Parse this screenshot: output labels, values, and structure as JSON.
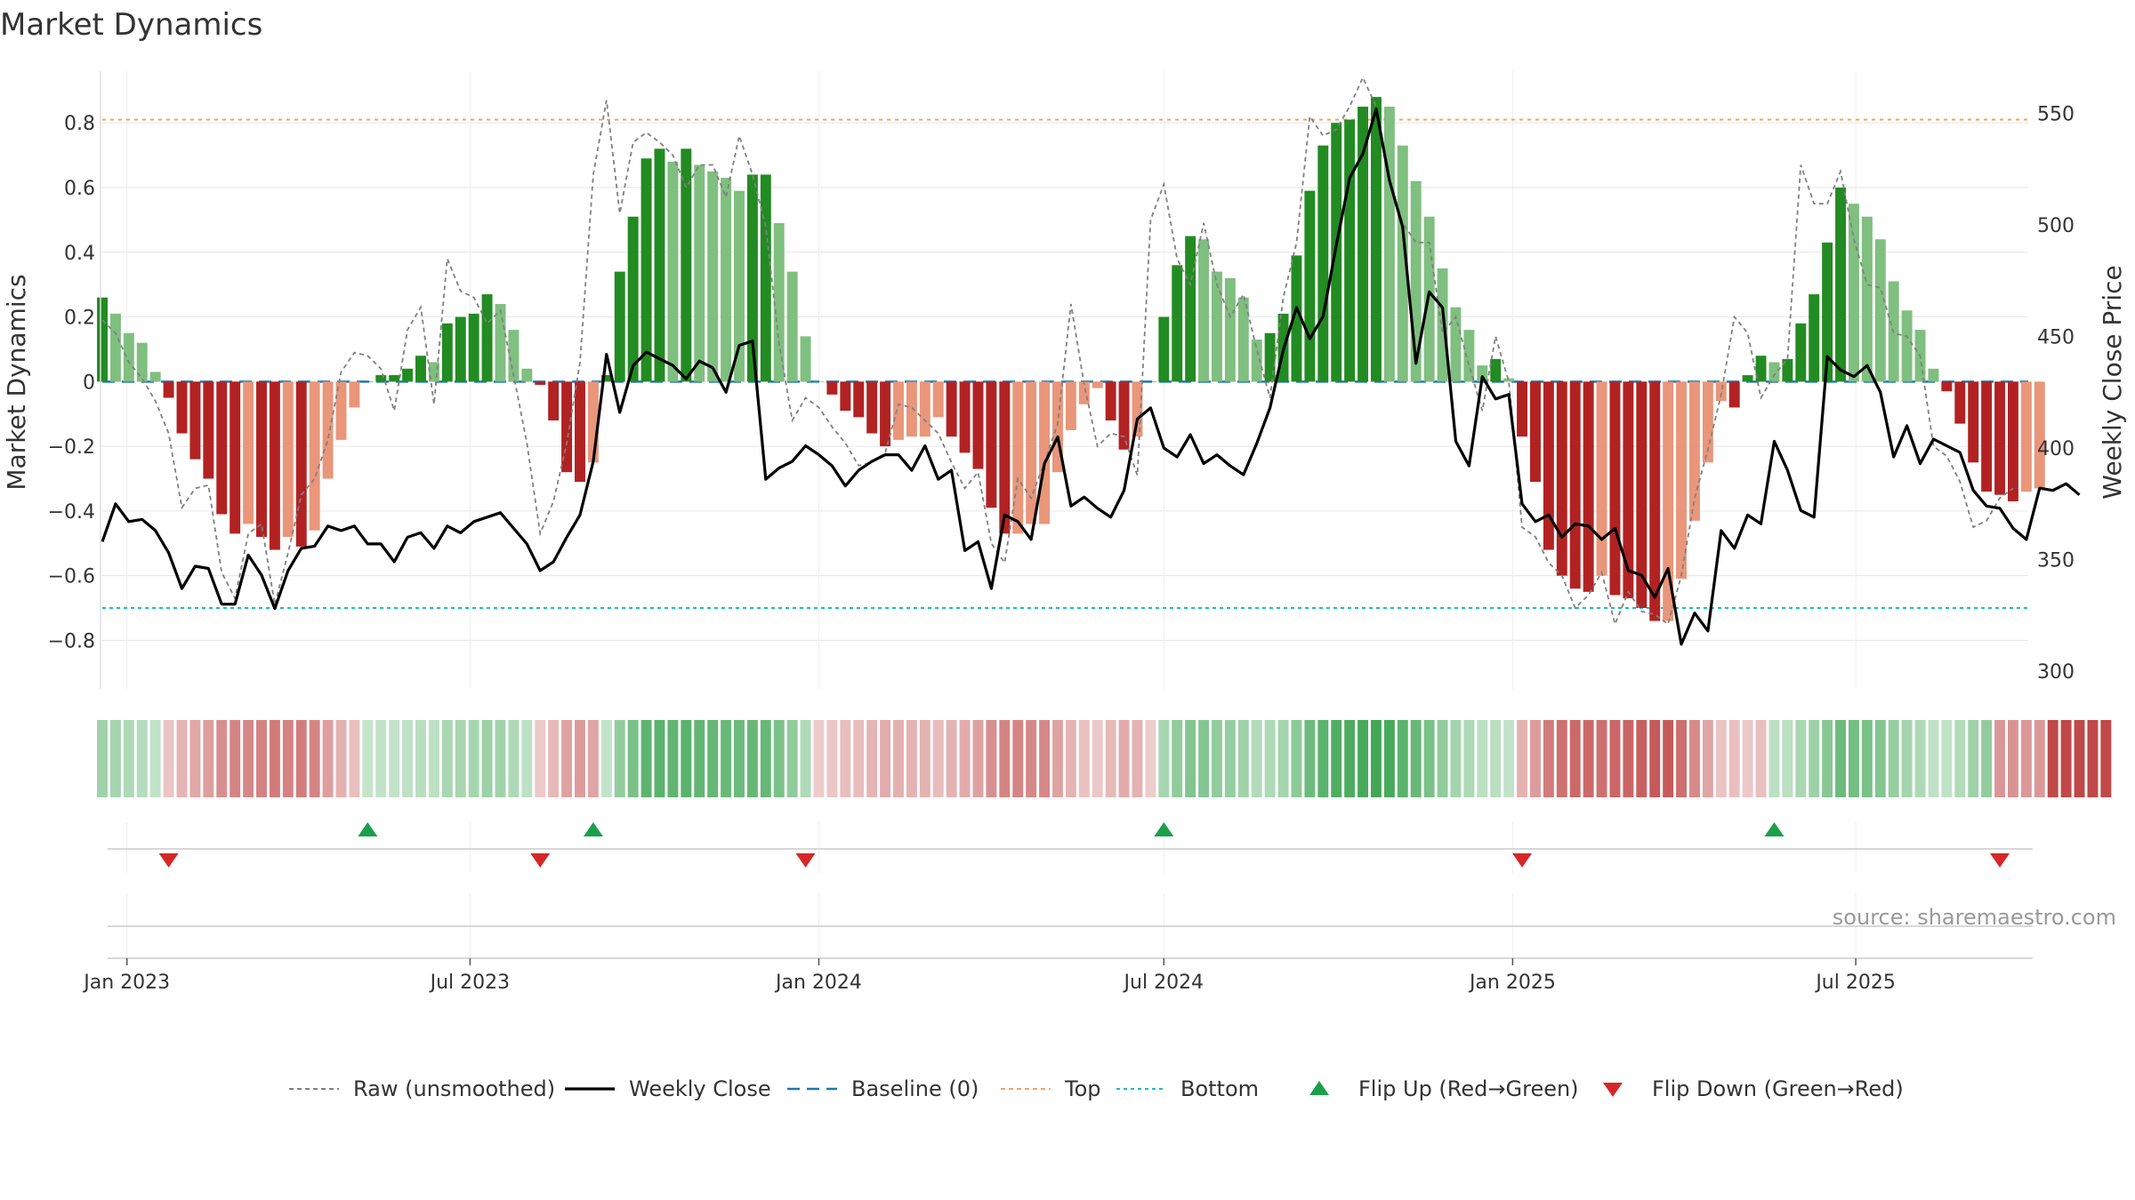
{
  "chart_data": {
    "type": "bar",
    "title": "Market Dynamics",
    "ylabel": "Market Dynamics",
    "y2label": "Weekly Close Price",
    "ylim": [
      -0.95,
      0.96
    ],
    "y2lim": [
      292,
      569
    ],
    "yticks": [
      0.8,
      0.6,
      0.4,
      0.2,
      0,
      -0.2,
      -0.4,
      -0.6,
      -0.8
    ],
    "ytick_labels": [
      "0.8",
      "0.6",
      "0.4",
      "0.2",
      "0",
      "−0.2",
      "−0.4",
      "−0.6",
      "−0.8"
    ],
    "y2ticks": [
      550,
      500,
      450,
      400,
      350,
      300
    ],
    "y2tick_labels": [
      "550",
      "500",
      "450",
      "400",
      "350",
      "300"
    ],
    "top_line": 0.81,
    "bottom_line": -0.7,
    "baseline": 0,
    "date_start": "2022-12-19",
    "week_days": 7,
    "x_end": "2025-09-30",
    "xticks": [
      {
        "date": "2023-01-01",
        "label": "Jan 2023"
      },
      {
        "date": "2023-07-01",
        "label": "Jul 2023"
      },
      {
        "date": "2024-01-01",
        "label": "Jan 2024"
      },
      {
        "date": "2024-07-01",
        "label": "Jul 2024"
      },
      {
        "date": "2025-01-01",
        "label": "Jan 2025"
      },
      {
        "date": "2025-07-01",
        "label": "Jul 2025"
      }
    ],
    "smoothed": [
      0.26,
      0.21,
      0.15,
      0.12,
      0.03,
      -0.05,
      -0.16,
      -0.24,
      -0.3,
      -0.41,
      -0.47,
      -0.44,
      -0.48,
      -0.52,
      -0.48,
      -0.51,
      -0.46,
      -0.3,
      -0.18,
      -0.08,
      0,
      0.02,
      0.02,
      0.04,
      0.08,
      0.06,
      0.18,
      0.2,
      0.21,
      0.27,
      0.24,
      0.16,
      0.04,
      -0.01,
      -0.12,
      -0.28,
      -0.31,
      -0.25,
      0.02,
      0.34,
      0.51,
      0.69,
      0.72,
      0.68,
      0.72,
      0.67,
      0.65,
      0.63,
      0.59,
      0.64,
      0.64,
      0.49,
      0.34,
      0.14,
      0,
      -0.04,
      -0.09,
      -0.11,
      -0.16,
      -0.2,
      -0.18,
      -0.17,
      -0.17,
      -0.11,
      -0.17,
      -0.22,
      -0.27,
      -0.39,
      -0.47,
      -0.47,
      -0.44,
      -0.44,
      -0.28,
      -0.15,
      -0.07,
      -0.02,
      -0.12,
      -0.21,
      -0.17,
      0,
      0.2,
      0.36,
      0.45,
      0.44,
      0.34,
      0.32,
      0.26,
      0.13,
      0.15,
      0.21,
      0.39,
      0.59,
      0.73,
      0.8,
      0.81,
      0.85,
      0.88,
      0.85,
      0.73,
      0.62,
      0.51,
      0.35,
      0.23,
      0.16,
      0.05,
      0.07,
      0.01,
      -0.17,
      -0.31,
      -0.52,
      -0.6,
      -0.64,
      -0.65,
      -0.6,
      -0.66,
      -0.67,
      -0.7,
      -0.74,
      -0.74,
      -0.61,
      -0.43,
      -0.25,
      -0.06,
      -0.08,
      0.02,
      0.08,
      0.06,
      0.07,
      0.18,
      0.27,
      0.43,
      0.6,
      0.55,
      0.51,
      0.44,
      0.31,
      0.22,
      0.16,
      0.04,
      -0.03,
      -0.13,
      -0.25,
      -0.34,
      -0.35,
      -0.37,
      -0.34,
      -0.33
    ],
    "raw": [
      0.19,
      0.15,
      0.06,
      0.01,
      -0.06,
      -0.16,
      -0.39,
      -0.33,
      -0.32,
      -0.59,
      -0.67,
      -0.47,
      -0.44,
      -0.69,
      -0.53,
      -0.35,
      -0.3,
      -0.18,
      0.03,
      0.09,
      0.08,
      0.04,
      -0.09,
      0.16,
      0.23,
      -0.07,
      0.38,
      0.28,
      0.26,
      0.18,
      0.22,
      0.02,
      -0.19,
      -0.47,
      -0.37,
      -0.19,
      0.06,
      0.64,
      0.87,
      0.52,
      0.74,
      0.77,
      0.74,
      0.7,
      0.6,
      0.67,
      0.67,
      0.57,
      0.76,
      0.64,
      0.48,
      0.12,
      -0.12,
      -0.05,
      -0.08,
      -0.14,
      -0.19,
      -0.26,
      -0.25,
      -0.22,
      -0.07,
      -0.08,
      -0.12,
      -0.16,
      -0.25,
      -0.33,
      -0.28,
      -0.5,
      -0.56,
      -0.3,
      -0.36,
      -0.25,
      -0.13,
      0.24,
      -0.01,
      -0.2,
      -0.16,
      -0.17,
      -0.29,
      0.5,
      0.61,
      0.38,
      0.3,
      0.49,
      0.3,
      0.2,
      0.27,
      0.1,
      -0.05,
      0.26,
      0.43,
      0.82,
      0.76,
      0.78,
      0.85,
      0.94,
      0.85,
      0.62,
      0.49,
      0.43,
      0.43,
      0.15,
      0.2,
      0.05,
      -0.09,
      0.14,
      0,
      -0.45,
      -0.48,
      -0.56,
      -0.6,
      -0.7,
      -0.66,
      -0.59,
      -0.75,
      -0.65,
      -0.71,
      -0.72,
      -0.75,
      -0.6,
      -0.36,
      -0.21,
      -0.04,
      0.2,
      0.15,
      -0.05,
      0.02,
      0.07,
      0.67,
      0.55,
      0.55,
      0.65,
      0.44,
      0.3,
      0.29,
      0.15,
      0.14,
      0.08,
      -0.2,
      -0.23,
      -0.31,
      -0.45,
      -0.43,
      -0.36,
      -0.33
    ],
    "close": [
      358,
      375,
      367,
      368,
      363,
      353,
      337,
      347,
      346,
      330,
      330,
      352,
      343,
      328,
      345,
      355,
      356,
      365,
      363,
      365,
      357,
      357,
      349,
      360,
      362,
      355,
      365,
      362,
      367,
      369,
      371,
      364,
      357,
      345,
      349,
      360,
      370,
      394,
      442,
      416,
      437,
      443,
      440,
      437,
      431,
      439,
      436,
      425,
      446,
      448,
      386,
      391,
      394,
      401,
      397,
      392,
      383,
      390,
      394,
      397,
      397,
      390,
      401,
      386,
      390,
      354,
      358,
      337,
      370,
      367,
      359,
      393,
      405,
      374,
      378,
      373,
      369,
      381,
      413,
      418,
      400,
      396,
      406,
      393,
      397,
      392,
      388,
      402,
      418,
      444,
      463,
      449,
      459,
      491,
      521,
      532,
      552,
      520,
      499,
      438,
      470,
      463,
      403,
      392,
      432,
      422,
      424,
      375,
      367,
      370,
      360,
      366,
      365,
      359,
      364,
      345,
      343,
      333,
      346,
      312,
      326,
      318,
      363,
      355,
      370,
      366,
      403,
      390,
      372,
      369,
      441,
      435,
      432,
      437,
      425,
      396,
      410,
      393,
      404,
      401,
      398,
      381,
      374,
      373,
      364,
      359,
      382,
      381,
      384,
      379
    ],
    "regime": [
      "g",
      "g",
      "g",
      "g",
      "g",
      "r",
      "r",
      "r",
      "r",
      "r",
      "r",
      "r",
      "r",
      "r",
      "r",
      "r",
      "r",
      "r",
      "r",
      "r",
      "g",
      "g",
      "g",
      "g",
      "g",
      "g",
      "g",
      "g",
      "g",
      "g",
      "g",
      "g",
      "g",
      "r",
      "r",
      "r",
      "r",
      "r",
      "g",
      "g",
      "g",
      "g",
      "g",
      "g",
      "g",
      "g",
      "g",
      "g",
      "g",
      "g",
      "g",
      "g",
      "g",
      "g",
      "r",
      "r",
      "r",
      "r",
      "r",
      "r",
      "r",
      "r",
      "r",
      "r",
      "r",
      "r",
      "r",
      "r",
      "r",
      "r",
      "r",
      "r",
      "r",
      "r",
      "r",
      "r",
      "r",
      "r",
      "r",
      "r",
      "g",
      "g",
      "g",
      "g",
      "g",
      "g",
      "g",
      "g",
      "g",
      "g",
      "g",
      "g",
      "g",
      "g",
      "g",
      "g",
      "g",
      "g",
      "g",
      "g",
      "g",
      "g",
      "g",
      "g",
      "g",
      "g",
      "g",
      "r",
      "r",
      "r",
      "r",
      "r",
      "r",
      "r",
      "r",
      "r",
      "r",
      "r",
      "r",
      "r",
      "r",
      "r",
      "r",
      "r",
      "r",
      "r",
      "g",
      "g",
      "g",
      "g",
      "g",
      "g",
      "g",
      "g",
      "g",
      "g",
      "g",
      "g",
      "g",
      "g",
      "g",
      "g",
      "g",
      "r",
      "r",
      "r",
      "r",
      "r",
      "r",
      "r",
      "r",
      "r"
    ],
    "flip_up_idx": [
      20,
      37,
      80,
      126
    ],
    "flip_down_idx": [
      5,
      33,
      53,
      107,
      143
    ],
    "colors": {
      "green_strong": "#228b22",
      "green_light": "#7fbf7f",
      "red_strong": "#b22222",
      "red_light": "#e9967a",
      "close": "#000000",
      "raw": "#808080",
      "baseline": "#1f77b4",
      "top": "#f4a460",
      "bottom": "#17becf",
      "flip_up": "#1aa04a",
      "flip_down": "#d62728"
    },
    "legend": [
      {
        "key": "raw",
        "label": "Raw (unsmoothed)",
        "style": "dotted"
      },
      {
        "key": "close",
        "label": "Weekly Close",
        "style": "solid"
      },
      {
        "key": "baseline",
        "label": "Baseline (0)",
        "style": "dashed"
      },
      {
        "key": "top",
        "label": "Top",
        "style": "dotted"
      },
      {
        "key": "bottom",
        "label": "Bottom",
        "style": "dotted-cyan"
      },
      {
        "key": "flip_up",
        "label": "Flip Up (Red→Green)",
        "style": "marker-up"
      },
      {
        "key": "flip_down",
        "label": "Flip Down (Green→Red)",
        "style": "marker-down"
      }
    ],
    "source": "source: sharemaestro.com"
  }
}
